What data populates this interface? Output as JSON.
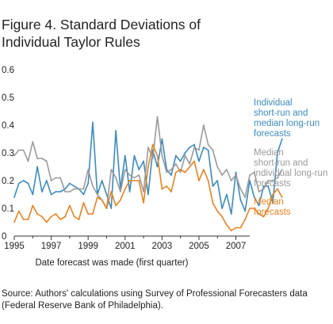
{
  "title_line1": "Figure 4. Standard Deviations of",
  "title_line2": "Individual Taylor Rules",
  "xlabel": "Date forecast was made (first quarter)",
  "source_line1": "Source: Authors' calculations using Survey of Professional Forecasters data",
  "source_line2": "(Federal Reserve Bank of Philadelphia).",
  "chart_data": {
    "type": "line",
    "title": "Figure 4. Standard Deviations of Individual Taylor Rules",
    "xlabel": "Date forecast was made (first quarter)",
    "ylabel": "",
    "xlim": [
      1995,
      2007.75
    ],
    "ylim": [
      0,
      0.6
    ],
    "grid": false,
    "legend": "right",
    "x_ticks": [
      "1995",
      "1997",
      "1999",
      "2001",
      "2003",
      "2005",
      "2007"
    ],
    "y_ticks": [
      "0",
      "0.1",
      "0.2",
      "0.3",
      "0.4",
      "0.5",
      "0.6"
    ],
    "x_start": 1995,
    "x_step": 0.25,
    "series": [
      {
        "legend_lines": [
          "Individual",
          "short-run and",
          "median long-run",
          "forecasts"
        ],
        "color": "#3b8bc0",
        "values": [
          0.14,
          0.19,
          0.2,
          0.19,
          0.15,
          0.25,
          0.16,
          0.2,
          0.15,
          0.16,
          0.16,
          0.17,
          0.19,
          0.18,
          0.17,
          0.15,
          0.19,
          0.41,
          0.15,
          0.2,
          0.15,
          0.1,
          0.38,
          0.17,
          0.29,
          0.16,
          0.29,
          0.24,
          0.27,
          0.15,
          0.31,
          0.25,
          0.35,
          0.24,
          0.22,
          0.29,
          0.27,
          0.3,
          0.32,
          0.33,
          0.27,
          0.32,
          0.31,
          0.18,
          0.2,
          0.1,
          0.15,
          0.08,
          0.23,
          0.13,
          0.09,
          0.2,
          0.14,
          0.11,
          0.18,
          0.18,
          0.12,
          0.3,
          0.35
        ]
      },
      {
        "legend_lines": [
          "Median",
          "short-run and",
          "individual long-run",
          "forecasts"
        ],
        "color": "#9a9a9a",
        "values": [
          0.29,
          0.31,
          0.31,
          0.27,
          0.34,
          0.28,
          0.28,
          0.27,
          0.2,
          0.21,
          0.21,
          0.16,
          0.16,
          0.17,
          0.17,
          0.17,
          0.24,
          0.18,
          0.15,
          0.13,
          0.1,
          0.24,
          0.21,
          0.16,
          0.24,
          0.22,
          0.21,
          0.22,
          0.16,
          0.32,
          0.28,
          0.43,
          0.29,
          0.23,
          0.24,
          0.26,
          0.23,
          0.29,
          0.26,
          0.32,
          0.31,
          0.4,
          0.33,
          0.31,
          0.25,
          0.22,
          0.24,
          0.2,
          0.22,
          0.17,
          0.14,
          0.22,
          0.23,
          0.16,
          0.17,
          0.2,
          0.2,
          0.21,
          0.24
        ]
      },
      {
        "legend_lines": [
          "Median",
          "forecasts"
        ],
        "color": "#e8821e",
        "values": [
          0.05,
          0.09,
          0.06,
          0.06,
          0.11,
          0.08,
          0.07,
          0.05,
          0.07,
          0.08,
          0.06,
          0.07,
          0.11,
          0.07,
          0.06,
          0.12,
          0.08,
          0.08,
          0.14,
          0.13,
          0.1,
          0.16,
          0.11,
          0.13,
          0.17,
          0.2,
          0.2,
          0.2,
          0.12,
          0.25,
          0.33,
          0.29,
          0.17,
          0.18,
          0.16,
          0.23,
          0.24,
          0.23,
          0.25,
          0.27,
          0.2,
          0.24,
          0.2,
          0.12,
          0.09,
          0.07,
          0.04,
          0.02,
          0.03,
          0.03,
          0.06,
          0.1,
          0.1,
          0.08,
          0.07,
          0.1,
          0.15,
          0.17,
          0.14
        ]
      }
    ]
  }
}
